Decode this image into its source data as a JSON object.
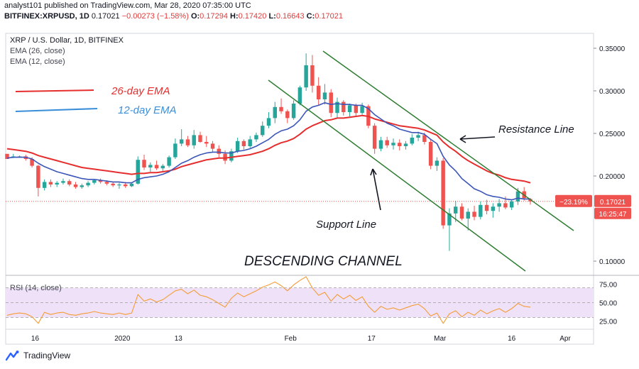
{
  "header": {
    "published": "analyst101 published on TradingView.com, Mar 28, 2020 07:35:00 UTC",
    "symbol": "BITFINEX:XRPUSD, 1D",
    "price": "0.17021",
    "change": "−0.00273 (−1.58%)",
    "o_label": "O:",
    "o_val": "0.17294",
    "h_label": "H:",
    "h_val": "0.17420",
    "l_label": "L:",
    "l_val": "0.16643",
    "c_label": "C:",
    "c_val": "0.17021"
  },
  "legend": {
    "title": "XRP / U.S. Dollar, 1D, BITFINEX",
    "ema26": "EMA (26, close)",
    "ema12": "EMA (12, close)"
  },
  "annotations": {
    "ema26_label": "26-day EMA",
    "ema12_label": "12-day EMA",
    "resistance": "Resistance Line",
    "support": "Support Line",
    "channel": "DESCENDING CHANNEL"
  },
  "rsi": {
    "label": "RSI (14, close)"
  },
  "badges": {
    "pct": "−23.19%",
    "price": "0.17021",
    "time": "16:25:47"
  },
  "footer": {
    "brand": "TradingView"
  },
  "colors": {
    "up": "#26a69a",
    "down": "#ef5350",
    "ema26": "#e62e2e",
    "ema12": "#3b56b9",
    "trend": "#2e7d32",
    "rsi": "#f59c35",
    "rsi_band": "#efe2f8",
    "price_line": "#ef5350",
    "badge_pct": "#ef5350",
    "badge_price": "#ef5350",
    "badge_time": "#ef5350"
  },
  "chart_data": {
    "type": "candlestick",
    "price_ticks": [
      "0.35000",
      "0.30000",
      "0.25000",
      "0.20000",
      "0.10000"
    ],
    "ylim": [
      0.085,
      0.365
    ],
    "rsi_ticks": [
      "75.00",
      "50.00",
      "25.00"
    ],
    "rsi_ylim": [
      16,
      85
    ],
    "x_ticks": [
      "16",
      "2020",
      "13",
      "Feb",
      "17",
      "Mar",
      "16",
      "Apr"
    ],
    "candles": [
      [
        0.226,
        0.224,
        0.221,
        0.22
      ],
      [
        0.222,
        0.226,
        0.221,
        0.223
      ],
      [
        0.223,
        0.224,
        0.222,
        0.223
      ],
      [
        0.223,
        0.225,
        0.218,
        0.22
      ],
      [
        0.22,
        0.222,
        0.21,
        0.212
      ],
      [
        0.212,
        0.213,
        0.176,
        0.186
      ],
      [
        0.186,
        0.196,
        0.183,
        0.193
      ],
      [
        0.193,
        0.196,
        0.187,
        0.19
      ],
      [
        0.19,
        0.194,
        0.187,
        0.192
      ],
      [
        0.192,
        0.197,
        0.19,
        0.194
      ],
      [
        0.194,
        0.196,
        0.188,
        0.19
      ],
      [
        0.19,
        0.193,
        0.185,
        0.187
      ],
      [
        0.187,
        0.191,
        0.185,
        0.189
      ],
      [
        0.189,
        0.194,
        0.187,
        0.192
      ],
      [
        0.192,
        0.196,
        0.19,
        0.195
      ],
      [
        0.195,
        0.197,
        0.191,
        0.193
      ],
      [
        0.193,
        0.195,
        0.189,
        0.191
      ],
      [
        0.191,
        0.193,
        0.187,
        0.189
      ],
      [
        0.189,
        0.192,
        0.185,
        0.19
      ],
      [
        0.19,
        0.193,
        0.186,
        0.188
      ],
      [
        0.188,
        0.192,
        0.187,
        0.191
      ],
      [
        0.191,
        0.223,
        0.19,
        0.219
      ],
      [
        0.219,
        0.225,
        0.207,
        0.21
      ],
      [
        0.21,
        0.216,
        0.205,
        0.213
      ],
      [
        0.213,
        0.218,
        0.207,
        0.209
      ],
      [
        0.209,
        0.214,
        0.206,
        0.212
      ],
      [
        0.212,
        0.224,
        0.21,
        0.222
      ],
      [
        0.222,
        0.244,
        0.22,
        0.238
      ],
      [
        0.238,
        0.255,
        0.235,
        0.243
      ],
      [
        0.243,
        0.247,
        0.234,
        0.236
      ],
      [
        0.236,
        0.254,
        0.232,
        0.248
      ],
      [
        0.248,
        0.252,
        0.239,
        0.24
      ],
      [
        0.24,
        0.247,
        0.234,
        0.238
      ],
      [
        0.238,
        0.241,
        0.228,
        0.232
      ],
      [
        0.232,
        0.236,
        0.222,
        0.226
      ],
      [
        0.226,
        0.23,
        0.214,
        0.218
      ],
      [
        0.218,
        0.232,
        0.216,
        0.229
      ],
      [
        0.229,
        0.245,
        0.227,
        0.241
      ],
      [
        0.241,
        0.243,
        0.231,
        0.235
      ],
      [
        0.235,
        0.247,
        0.233,
        0.243
      ],
      [
        0.243,
        0.251,
        0.24,
        0.248
      ],
      [
        0.248,
        0.264,
        0.246,
        0.259
      ],
      [
        0.259,
        0.275,
        0.256,
        0.268
      ],
      [
        0.268,
        0.287,
        0.262,
        0.281
      ],
      [
        0.281,
        0.291,
        0.273,
        0.276
      ],
      [
        0.276,
        0.278,
        0.262,
        0.268
      ],
      [
        0.268,
        0.289,
        0.266,
        0.285
      ],
      [
        0.285,
        0.306,
        0.283,
        0.304
      ],
      [
        0.304,
        0.344,
        0.3,
        0.33
      ],
      [
        0.33,
        0.342,
        0.298,
        0.306
      ],
      [
        0.306,
        0.316,
        0.283,
        0.29
      ],
      [
        0.29,
        0.308,
        0.284,
        0.298
      ],
      [
        0.298,
        0.302,
        0.269,
        0.274
      ],
      [
        0.274,
        0.292,
        0.268,
        0.287
      ],
      [
        0.287,
        0.289,
        0.271,
        0.275
      ],
      [
        0.275,
        0.285,
        0.27,
        0.283
      ],
      [
        0.283,
        0.285,
        0.27,
        0.274
      ],
      [
        0.274,
        0.286,
        0.272,
        0.282
      ],
      [
        0.282,
        0.284,
        0.256,
        0.259
      ],
      [
        0.259,
        0.262,
        0.226,
        0.232
      ],
      [
        0.232,
        0.246,
        0.229,
        0.242
      ],
      [
        0.242,
        0.246,
        0.233,
        0.236
      ],
      [
        0.236,
        0.244,
        0.231,
        0.239
      ],
      [
        0.239,
        0.243,
        0.23,
        0.235
      ],
      [
        0.235,
        0.241,
        0.231,
        0.238
      ],
      [
        0.238,
        0.249,
        0.236,
        0.245
      ],
      [
        0.245,
        0.252,
        0.241,
        0.248
      ],
      [
        0.248,
        0.251,
        0.237,
        0.24
      ],
      [
        0.24,
        0.243,
        0.208,
        0.212
      ],
      [
        0.212,
        0.222,
        0.206,
        0.218
      ],
      [
        0.218,
        0.221,
        0.138,
        0.142
      ],
      [
        0.142,
        0.162,
        0.112,
        0.156
      ],
      [
        0.156,
        0.171,
        0.146,
        0.164
      ],
      [
        0.164,
        0.168,
        0.148,
        0.15
      ],
      [
        0.15,
        0.162,
        0.136,
        0.158
      ],
      [
        0.158,
        0.165,
        0.148,
        0.152
      ],
      [
        0.152,
        0.17,
        0.149,
        0.166
      ],
      [
        0.166,
        0.172,
        0.155,
        0.159
      ],
      [
        0.159,
        0.168,
        0.151,
        0.164
      ],
      [
        0.164,
        0.173,
        0.158,
        0.168
      ],
      [
        0.168,
        0.176,
        0.161,
        0.163
      ],
      [
        0.163,
        0.172,
        0.16,
        0.17
      ],
      [
        0.17,
        0.186,
        0.166,
        0.182
      ],
      [
        0.182,
        0.187,
        0.171,
        0.174
      ],
      [
        0.1729,
        0.1742,
        0.1664,
        0.1702
      ]
    ],
    "ema12": [
      0.221,
      0.222,
      0.222,
      0.222,
      0.22,
      0.215,
      0.211,
      0.208,
      0.205,
      0.203,
      0.201,
      0.199,
      0.197,
      0.196,
      0.196,
      0.195,
      0.194,
      0.193,
      0.193,
      0.192,
      0.192,
      0.196,
      0.198,
      0.199,
      0.2,
      0.202,
      0.205,
      0.21,
      0.215,
      0.218,
      0.222,
      0.225,
      0.227,
      0.228,
      0.228,
      0.227,
      0.227,
      0.229,
      0.23,
      0.232,
      0.235,
      0.239,
      0.243,
      0.249,
      0.253,
      0.255,
      0.259,
      0.266,
      0.276,
      0.281,
      0.283,
      0.286,
      0.284,
      0.285,
      0.284,
      0.284,
      0.283,
      0.283,
      0.279,
      0.272,
      0.267,
      0.262,
      0.259,
      0.255,
      0.253,
      0.251,
      0.251,
      0.249,
      0.243,
      0.238,
      0.223,
      0.213,
      0.206,
      0.197,
      0.191,
      0.185,
      0.182,
      0.178,
      0.176,
      0.175,
      0.173,
      0.172,
      0.174,
      0.173,
      0.173
    ],
    "ema26": [
      0.232,
      0.231,
      0.23,
      0.229,
      0.227,
      0.224,
      0.222,
      0.22,
      0.218,
      0.216,
      0.214,
      0.212,
      0.21,
      0.209,
      0.208,
      0.207,
      0.206,
      0.205,
      0.204,
      0.203,
      0.202,
      0.203,
      0.203,
      0.204,
      0.204,
      0.205,
      0.206,
      0.208,
      0.211,
      0.213,
      0.215,
      0.217,
      0.219,
      0.22,
      0.221,
      0.221,
      0.222,
      0.223,
      0.224,
      0.225,
      0.227,
      0.229,
      0.232,
      0.236,
      0.239,
      0.241,
      0.244,
      0.249,
      0.255,
      0.259,
      0.262,
      0.265,
      0.266,
      0.268,
      0.268,
      0.269,
      0.27,
      0.271,
      0.27,
      0.267,
      0.265,
      0.263,
      0.261,
      0.259,
      0.258,
      0.257,
      0.256,
      0.254,
      0.251,
      0.248,
      0.24,
      0.234,
      0.229,
      0.223,
      0.218,
      0.214,
      0.21,
      0.206,
      0.203,
      0.201,
      0.198,
      0.196,
      0.195,
      0.194,
      0.192
    ],
    "rsi": [
      33,
      35,
      36,
      35,
      31,
      22,
      37,
      34,
      36,
      37,
      34,
      33,
      35,
      36,
      38,
      36,
      35,
      34,
      36,
      34,
      36,
      61,
      52,
      55,
      51,
      54,
      60,
      66,
      68,
      62,
      67,
      60,
      58,
      54,
      49,
      44,
      56,
      63,
      58,
      62,
      66,
      71,
      74,
      78,
      73,
      66,
      74,
      80,
      85,
      70,
      60,
      64,
      52,
      61,
      55,
      60,
      53,
      58,
      45,
      37,
      45,
      41,
      43,
      40,
      43,
      46,
      48,
      42,
      32,
      36,
      22,
      35,
      39,
      31,
      37,
      33,
      40,
      35,
      39,
      42,
      37,
      42,
      49,
      45,
      44
    ]
  }
}
